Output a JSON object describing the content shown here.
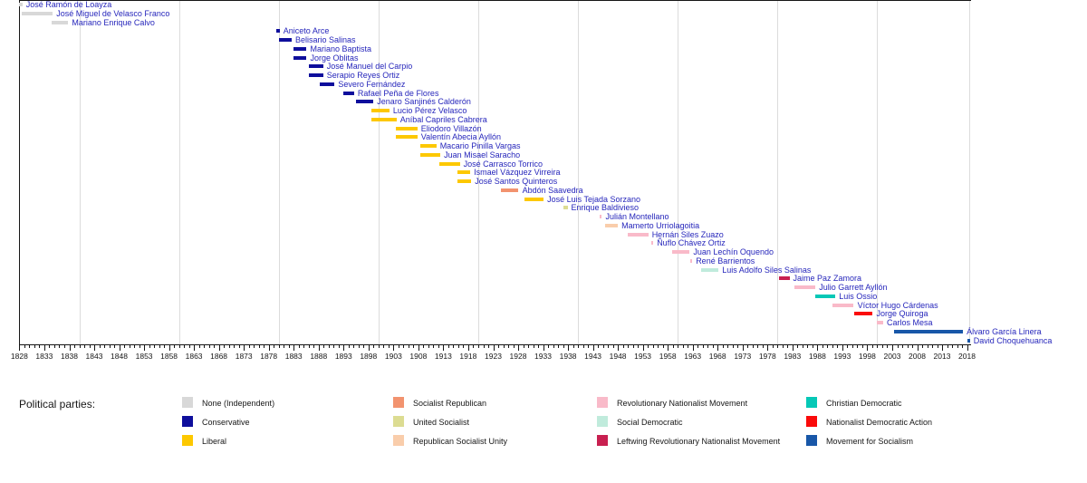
{
  "chart_data": {
    "type": "bar",
    "subtype": "gantt-timeline",
    "description": "Timeline of vice presidents of Bolivia colored by political party",
    "legend_title": "Political parties:",
    "x_axis": {
      "start": 1828,
      "end": 2018,
      "tick_label_step": 5,
      "minor_tick_step": 1,
      "gridline_years": [
        1840,
        1860,
        1880,
        1900,
        1920,
        1940,
        1960,
        1980,
        2000
      ],
      "grid": true
    },
    "parties": [
      {
        "id": "none",
        "label": "None (Independent)",
        "color": "#d8d8d8"
      },
      {
        "id": "conservative",
        "label": "Conservative",
        "color": "#0e0e9c"
      },
      {
        "id": "liberal",
        "label": "Liberal",
        "color": "#fdc800"
      },
      {
        "id": "socialist_republican",
        "label": "Socialist Republican",
        "color": "#f2936f"
      },
      {
        "id": "united_socialist",
        "label": "United Socialist",
        "color": "#dcdc92"
      },
      {
        "id": "republican_socialist_unity",
        "label": "Republican Socialist Unity",
        "color": "#f9cdab"
      },
      {
        "id": "rnm",
        "label": "Revolutionary Nationalist Movement",
        "color": "#f9bac9"
      },
      {
        "id": "social_democratic",
        "label": "Social Democratic",
        "color": "#c0ebdc"
      },
      {
        "id": "leftwing_rnm",
        "label": "Leftwing Revolutionary Nationalist Movement",
        "color": "#c82050"
      },
      {
        "id": "christian_democratic",
        "label": "Christian Democratic",
        "color": "#06c8b6"
      },
      {
        "id": "adn",
        "label": "Nationalist Democratic Action",
        "color": "#fa0a0a"
      },
      {
        "id": "mas",
        "label": "Movement for Socialism",
        "color": "#1857a8"
      }
    ],
    "legend_columns": [
      [
        "none",
        "conservative",
        "liberal"
      ],
      [
        "socialist_republican",
        "united_socialist",
        "republican_socialist_unity"
      ],
      [
        "rnm",
        "social_democratic",
        "leftwing_rnm"
      ],
      [
        "christian_democratic",
        "adn",
        "mas"
      ]
    ],
    "people": [
      {
        "name": "José Ramón de Loayza",
        "party": "none",
        "start": 1828,
        "end": 1828.6
      },
      {
        "name": "José Miguel de Velasco Franco",
        "party": "none",
        "start": 1828.5,
        "end": 1834.7
      },
      {
        "name": "Mariano Enrique Calvo",
        "party": "none",
        "start": 1834.4,
        "end": 1837.8
      },
      {
        "name": "Aniceto Arce",
        "party": "conservative",
        "start": 1879.5,
        "end": 1880.2
      },
      {
        "name": "Belisario Salinas",
        "party": "conservative",
        "start": 1880,
        "end": 1882.6
      },
      {
        "name": "Mariano Baptista",
        "party": "conservative",
        "start": 1883,
        "end": 1885.6
      },
      {
        "name": "Jorge Oblitas",
        "party": "conservative",
        "start": 1883,
        "end": 1885.6
      },
      {
        "name": "José Manuel del Carpio",
        "party": "conservative",
        "start": 1886.1,
        "end": 1888.9
      },
      {
        "name": "Serapio Reyes Ortiz",
        "party": "conservative",
        "start": 1886.1,
        "end": 1888.9
      },
      {
        "name": "Severo Fernández",
        "party": "conservative",
        "start": 1888.3,
        "end": 1891.2
      },
      {
        "name": "Rafael Peña de Flores",
        "party": "conservative",
        "start": 1893,
        "end": 1895.1
      },
      {
        "name": "Jenaro Sanjinés Calderón",
        "party": "conservative",
        "start": 1895.5,
        "end": 1899
      },
      {
        "name": "Lucio Pérez Velasco",
        "party": "liberal",
        "start": 1898.6,
        "end": 1902.2
      },
      {
        "name": "Aníbal Capriles Cabrera",
        "party": "liberal",
        "start": 1898.6,
        "end": 1903.6
      },
      {
        "name": "Eliodoro Villazón",
        "party": "liberal",
        "start": 1903.5,
        "end": 1907.8
      },
      {
        "name": "Valentín Abecia Ayllón",
        "party": "liberal",
        "start": 1903.5,
        "end": 1907.8
      },
      {
        "name": "Macario Pinilla Vargas",
        "party": "liberal",
        "start": 1908.3,
        "end": 1911.6
      },
      {
        "name": "Juan Misael Saracho",
        "party": "liberal",
        "start": 1908.3,
        "end": 1912.4
      },
      {
        "name": "José Carrasco Torrico",
        "party": "liberal",
        "start": 1912.1,
        "end": 1916.3
      },
      {
        "name": "Ismael Vázquez Virreira",
        "party": "liberal",
        "start": 1915.9,
        "end": 1918.4
      },
      {
        "name": "José Santos Quinteros",
        "party": "liberal",
        "start": 1915.9,
        "end": 1918.6
      },
      {
        "name": "Abdón Saavedra",
        "party": "socialist_republican",
        "start": 1924.5,
        "end": 1928.1
      },
      {
        "name": "José Luis Tejada Sorzano",
        "party": "liberal",
        "start": 1929.2,
        "end": 1933.1
      },
      {
        "name": "Enrique Baldivieso",
        "party": "united_socialist",
        "start": 1937,
        "end": 1937.9
      },
      {
        "name": "Julián Montellano",
        "party": "rnm",
        "start": 1944.3,
        "end": 1944.8
      },
      {
        "name": "Mamerto Urriolagoitia",
        "party": "republican_socialist_unity",
        "start": 1945.5,
        "end": 1948
      },
      {
        "name": "Hernán Siles Zuazo",
        "party": "rnm",
        "start": 1950,
        "end": 1954.1
      },
      {
        "name": "Ñuflo Chávez Ortiz",
        "party": "rnm",
        "start": 1954.6,
        "end": 1955.1
      },
      {
        "name": "Juan Lechín Oquendo",
        "party": "rnm",
        "start": 1958.8,
        "end": 1962.4
      },
      {
        "name": "René Barrientos",
        "party": "rnm",
        "start": 1962.5,
        "end": 1962.9
      },
      {
        "name": "Luis Adolfo Siles Salinas",
        "party": "social_democratic",
        "start": 1964.6,
        "end": 1968.2
      },
      {
        "name": "Jaime Paz Zamora",
        "party": "leftwing_rnm",
        "start": 1980.3,
        "end": 1982.4
      },
      {
        "name": "Julio Garrett Ayllón",
        "party": "rnm",
        "start": 1983.3,
        "end": 1987.6
      },
      {
        "name": "Luis Ossio",
        "party": "christian_democratic",
        "start": 1987.5,
        "end": 1991.6
      },
      {
        "name": "Víctor Hugo Cárdenas",
        "party": "rnm",
        "start": 1991.1,
        "end": 1995.3
      },
      {
        "name": "Jorge Quiroga",
        "party": "adn",
        "start": 1995.3,
        "end": 1999.1
      },
      {
        "name": "Carlos Mesa",
        "party": "rnm",
        "start": 2000,
        "end": 2001.2
      },
      {
        "name": "Álvaro García Linera",
        "party": "mas",
        "start": 2003.4,
        "end": 2017.2
      },
      {
        "name": "David Choquehuanca",
        "party": "mas",
        "start": 2018.1,
        "end": 2018.6
      }
    ]
  }
}
